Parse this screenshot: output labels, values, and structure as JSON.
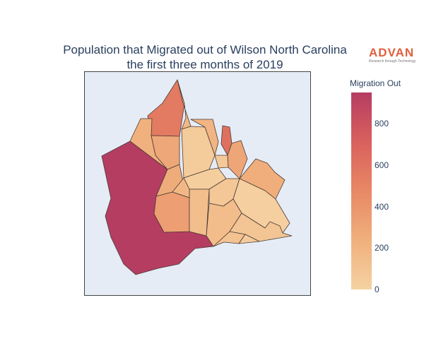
{
  "title": {
    "line1": "Population that Migrated out of Wilson North Carolina",
    "line2": "the first three months of 2019"
  },
  "logo": {
    "text": "ADVAN",
    "tagline": "Research through Technology"
  },
  "colorbar": {
    "title": "Migration Out",
    "min": 0,
    "max": 950,
    "ticks": [
      0,
      200,
      400,
      600,
      800
    ],
    "colorscale": [
      "#f5d2a2",
      "#f0b07d",
      "#e88865",
      "#d9605d",
      "#b53d62"
    ]
  },
  "chart_data": {
    "type": "choropleth",
    "value_label": "Migration Out",
    "regions": [
      {
        "id": "west-large",
        "value": 950
      },
      {
        "id": "north-peak",
        "value": 560
      },
      {
        "id": "north-mid",
        "value": 190
      },
      {
        "id": "nw-small",
        "value": 230
      },
      {
        "id": "w-upper",
        "value": 290
      },
      {
        "id": "center-west-1",
        "value": 260
      },
      {
        "id": "center-west-2",
        "value": 340
      },
      {
        "id": "center-tall",
        "value": 50
      },
      {
        "id": "ne-1",
        "value": 200
      },
      {
        "id": "ne-red",
        "value": 620
      },
      {
        "id": "e-1",
        "value": 300
      },
      {
        "id": "e-2",
        "value": 250
      },
      {
        "id": "center-1",
        "value": 30
      },
      {
        "id": "center-2",
        "value": 60
      },
      {
        "id": "center-3",
        "value": 140
      },
      {
        "id": "center-4",
        "value": 80
      },
      {
        "id": "se-1",
        "value": 20
      },
      {
        "id": "se-2",
        "value": 150
      },
      {
        "id": "se-3",
        "value": 90
      },
      {
        "id": "s-1",
        "value": 110
      },
      {
        "id": "s-2",
        "value": 180
      },
      {
        "id": "s-3",
        "value": 40
      }
    ]
  }
}
